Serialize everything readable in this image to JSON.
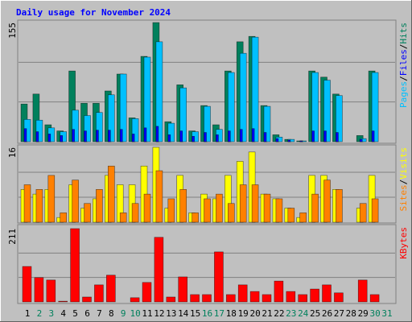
{
  "title": "Daily usage for November 2024",
  "separator": "/",
  "chart_data": [
    {
      "type": "bar",
      "ylim": [
        0,
        155
      ],
      "yticks": [
        155
      ],
      "series": [
        {
          "name": "Hits",
          "color": "#00805c",
          "values": [
            49,
            62,
            22,
            14,
            92,
            50,
            50,
            66,
            88,
            31,
            111,
            155,
            26,
            74,
            14,
            47,
            22,
            92,
            130,
            137,
            47,
            9,
            3,
            1,
            92,
            84,
            62,
            0,
            8,
            92,
            0
          ]
        },
        {
          "name": "Files",
          "color": "#0000ff",
          "values": [
            17,
            13,
            10,
            8,
            16,
            14,
            15,
            15,
            16,
            10,
            18,
            20,
            9,
            14,
            7,
            12,
            9,
            14,
            16,
            17,
            12,
            4,
            2,
            1,
            14,
            14,
            12,
            0,
            3,
            14,
            0
          ]
        },
        {
          "name": "Pages",
          "color": "#00c0ff",
          "values": [
            29,
            28,
            18,
            13,
            41,
            34,
            38,
            61,
            88,
            30,
            110,
            130,
            24,
            70,
            13,
            46,
            16,
            90,
            115,
            136,
            46,
            6,
            3,
            1,
            90,
            80,
            60,
            0,
            4,
            90,
            0
          ]
        }
      ]
    },
    {
      "type": "bar",
      "ylim": [
        0,
        16
      ],
      "yticks": [
        16
      ],
      "series": [
        {
          "name": "Visits",
          "color": "#ffff00",
          "values": [
            7,
            6,
            7,
            1,
            8,
            3,
            5,
            10,
            8,
            8,
            12,
            16,
            3,
            10,
            2,
            6,
            5,
            10,
            13,
            15,
            6,
            5,
            3,
            1,
            10,
            10,
            7,
            0,
            3,
            10,
            0
          ]
        },
        {
          "name": "Sites",
          "color": "#ff8000",
          "values": [
            8,
            7,
            10,
            2,
            9,
            4,
            7,
            12,
            2,
            4,
            6,
            11,
            5,
            7,
            2,
            5,
            6,
            4,
            8,
            8,
            6,
            5,
            3,
            2,
            6,
            9,
            7,
            0,
            4,
            5,
            0
          ]
        }
      ]
    },
    {
      "type": "bar",
      "ylim": [
        0,
        211
      ],
      "yticks": [
        211
      ],
      "categories": [
        "1",
        "2",
        "3",
        "4",
        "5",
        "6",
        "7",
        "8",
        "9",
        "10",
        "11",
        "12",
        "13",
        "14",
        "15",
        "16",
        "17",
        "18",
        "19",
        "20",
        "21",
        "22",
        "23",
        "24",
        "25",
        "26",
        "27",
        "28",
        "29",
        "30",
        "31"
      ],
      "category_colors": [
        "#000000",
        "#00805c",
        "#00805c",
        "#000000",
        "#000000",
        "#000000",
        "#000000",
        "#000000",
        "#00805c",
        "#00805c",
        "#000000",
        "#000000",
        "#000000",
        "#000000",
        "#000000",
        "#00805c",
        "#00805c",
        "#000000",
        "#000000",
        "#000000",
        "#000000",
        "#000000",
        "#00805c",
        "#00805c",
        "#000000",
        "#000000",
        "#000000",
        "#000000",
        "#000000",
        "#00805c",
        "#00805c"
      ],
      "series": [
        {
          "name": "KBytes",
          "color": "#ff0000",
          "values": [
            102,
            70,
            63,
            2,
            211,
            14,
            49,
            77,
            0,
            12,
            56,
            186,
            14,
            72,
            21,
            21,
            144,
            21,
            49,
            30,
            21,
            60,
            30,
            21,
            37,
            49,
            26,
            0,
            63,
            21,
            0
          ]
        }
      ]
    }
  ]
}
